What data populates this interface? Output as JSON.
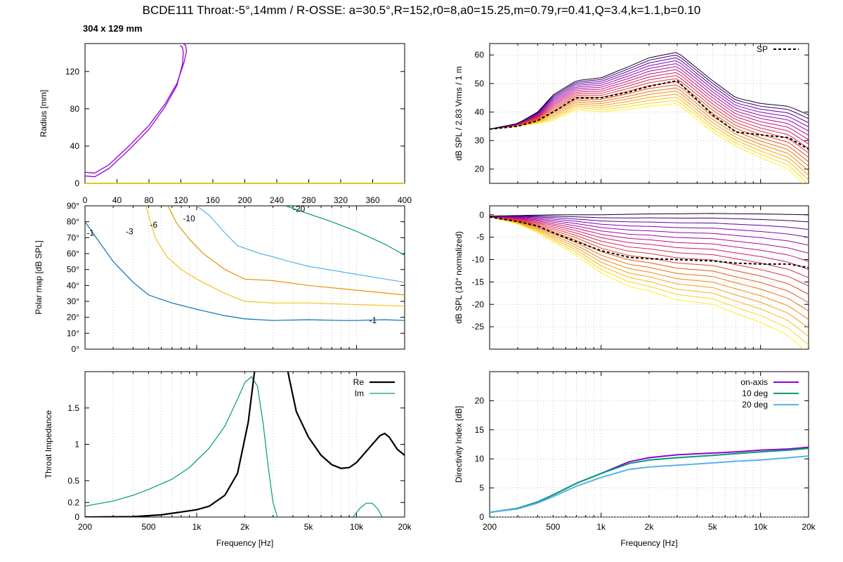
{
  "header": {
    "title": "BCDE111 Throat:-5°,14mm / R-OSSE: a=30.5°,R=152,r0=8,a0=15.25,m=0.79,r=0.41,Q=3.4,k=1.1,b=0.10",
    "subtitle": "304 x 129 mm"
  },
  "colors": {
    "profile": "#9400d3",
    "baseline": "#e6c619",
    "contour_m1": "#0072b2",
    "contour_m3": "#f0c419",
    "contour_m6": "#e69500",
    "contour_m10": "#56b4e9",
    "contour_m20": "#009e73",
    "re": "#000000",
    "im": "#009e73",
    "di_on_axis": "#9400d3",
    "di_10": "#009e73",
    "di_20": "#56b4e9"
  },
  "chart_data": [
    {
      "id": "profile",
      "type": "line",
      "ylabel": "Radius [mm]",
      "xticks": [
        "0",
        "40",
        "80",
        "120",
        "160",
        "200",
        "240",
        "280",
        "320",
        "360",
        "400"
      ],
      "yticks": [
        "0",
        "40",
        "80",
        "120"
      ],
      "xlim": [
        0,
        400
      ],
      "ylim": [
        0,
        150
      ],
      "series": [
        {
          "values_x": [
            0,
            12,
            30,
            55,
            80,
            100,
            115,
            124,
            127,
            126,
            123
          ],
          "values_y": [
            12,
            11,
            20,
            40,
            62,
            85,
            107,
            130,
            142,
            148,
            150
          ]
        },
        {
          "values_x": [
            0,
            12,
            30,
            55,
            80,
            100,
            115,
            122,
            123,
            122,
            119
          ],
          "values_y": [
            8,
            7,
            16,
            36,
            58,
            82,
            105,
            128,
            140,
            146,
            148
          ]
        }
      ]
    },
    {
      "id": "polar_map",
      "type": "line",
      "ylabel": "Polar map [dB SPL]",
      "yticks": [
        "0°",
        "10°",
        "20°",
        "30°",
        "40°",
        "50°",
        "60°",
        "70°",
        "80°",
        "90°"
      ],
      "xscale": "log",
      "xlim": [
        200,
        20000
      ],
      "ylim": [
        0,
        90
      ],
      "contours": [
        {
          "label": "-1",
          "x": [
            200,
            300,
            400,
            500,
            700,
            1000,
            1500,
            2000,
            3000,
            5000,
            8000,
            10000,
            15000,
            20000
          ],
          "y": [
            80,
            55,
            42,
            34,
            29,
            25,
            21,
            19,
            18,
            18.5,
            18,
            18,
            18.5,
            18
          ]
        },
        {
          "label": "-3",
          "x": [
            480,
            550,
            650,
            800,
            1000,
            1500,
            2000,
            3000,
            5000,
            10000,
            20000
          ],
          "y": [
            90,
            70,
            58,
            50,
            44,
            35,
            30,
            29,
            29,
            28,
            27
          ]
        },
        {
          "label": "-6",
          "x": [
            660,
            750,
            900,
            1100,
            1500,
            2000,
            3000,
            5000,
            10000,
            20000
          ],
          "y": [
            90,
            79,
            69,
            60,
            50,
            44,
            43,
            40,
            37,
            34
          ]
        },
        {
          "label": "-10",
          "x": [
            1000,
            1200,
            1500,
            1800,
            2500,
            3000,
            3500,
            5000,
            10000,
            20000
          ],
          "y": [
            90,
            84,
            73,
            65,
            60,
            58,
            56,
            52,
            47,
            42
          ]
        },
        {
          "label": "-20",
          "x": [
            3600,
            5000,
            7000,
            10000,
            15000,
            20000
          ],
          "y": [
            90,
            85,
            80,
            74,
            66,
            59
          ]
        }
      ],
      "contour_labels": [
        {
          "text": "-1",
          "x": 205,
          "y": 73
        },
        {
          "text": "-3",
          "x": 360,
          "y": 74
        },
        {
          "text": "-6",
          "x": 510,
          "y": 78
        },
        {
          "text": "-10",
          "x": 820,
          "y": 82
        },
        {
          "text": "-20",
          "x": 4000,
          "y": 88
        },
        {
          "text": "-1",
          "x": 12000,
          "y": 18
        }
      ]
    },
    {
      "id": "impedance",
      "type": "line",
      "xlabel": "Frequency [Hz]",
      "ylabel": "Throat Impedance",
      "xscale": "log",
      "xlim": [
        200,
        20000
      ],
      "ylim": [
        0,
        2
      ],
      "xticks": [
        "200",
        "500",
        "1k",
        "2k",
        "5k",
        "10k",
        "20k"
      ],
      "xtick_vals": [
        200,
        500,
        1000,
        2000,
        5000,
        10000,
        20000
      ],
      "yticks": [
        "0",
        "0.2",
        "0.5",
        "1",
        "1.5"
      ],
      "ytick_vals": [
        0,
        0.2,
        0.5,
        1,
        1.5
      ],
      "legend": "top-right",
      "series": [
        {
          "name": "Re",
          "x": [
            200,
            400,
            600,
            800,
            1000,
            1200,
            1500,
            1800,
            2100,
            2300,
            2400,
            3500,
            3800,
            4200,
            5000,
            6000,
            7000,
            8000,
            9000,
            10000,
            12000,
            14000,
            15000,
            16000,
            18000,
            20000
          ],
          "y": [
            0,
            0.005,
            0.03,
            0.07,
            0.1,
            0.15,
            0.3,
            0.6,
            1.3,
            2.0,
            2.3,
            2.3,
            1.9,
            1.45,
            1.1,
            0.85,
            0.72,
            0.67,
            0.68,
            0.75,
            0.95,
            1.12,
            1.15,
            1.1,
            0.93,
            0.85
          ]
        },
        {
          "name": "Im",
          "x": [
            200,
            300,
            400,
            500,
            700,
            900,
            1200,
            1500,
            1800,
            2000,
            2200,
            2400,
            2600,
            2800,
            3000,
            3200
          ],
          "y": [
            0.15,
            0.22,
            0.3,
            0.38,
            0.52,
            0.68,
            0.95,
            1.25,
            1.62,
            1.85,
            1.93,
            1.8,
            1.3,
            0.7,
            0.2,
            0
          ]
        },
        {
          "name": "",
          "x": [
            9500,
            10500,
            11500,
            12500,
            13500,
            14500
          ],
          "y": [
            0,
            0.12,
            0.19,
            0.19,
            0.12,
            0
          ]
        }
      ]
    },
    {
      "id": "spl",
      "type": "line",
      "ylabel": "dB SPL / 2.83 Vrms / 1 m",
      "xscale": "log",
      "xlim": [
        200,
        20000
      ],
      "ylim": [
        15,
        64
      ],
      "yticks": [
        "20",
        "30",
        "40",
        "50",
        "60"
      ],
      "ytick_vals": [
        20,
        30,
        40,
        50,
        60
      ],
      "legend": "top-right",
      "series": [
        {
          "name": "SP",
          "x": [
            200,
            300,
            400,
            500,
            700,
            1000,
            1500,
            2000,
            3000,
            5000,
            7000,
            10000,
            15000,
            20000
          ],
          "y": [
            34,
            35,
            37,
            40,
            45,
            45,
            47,
            49,
            51,
            39,
            33,
            32,
            31,
            27
          ]
        }
      ],
      "family": {
        "count": 18,
        "top": {
          "x": [
            200,
            300,
            400,
            500,
            700,
            1000,
            1500,
            2000,
            3000,
            5000,
            7000,
            10000,
            15000,
            20000
          ],
          "y": [
            34,
            36,
            40,
            46,
            51,
            52,
            56,
            59,
            61,
            51,
            45,
            43,
            42,
            39
          ]
        },
        "bottom": {
          "x": [
            200,
            300,
            400,
            500,
            700,
            1000,
            1500,
            2000,
            3000,
            5000,
            7000,
            10000,
            15000,
            20000
          ],
          "y": [
            34,
            35,
            36,
            37,
            41,
            40,
            41,
            42,
            43,
            33,
            28,
            24,
            20,
            13
          ]
        }
      }
    },
    {
      "id": "normalized",
      "type": "line",
      "ylabel": "dB SPL (10° normalized)",
      "xscale": "log",
      "xlim": [
        200,
        20000
      ],
      "ylim": [
        -30,
        2
      ],
      "yticks": [
        "0",
        "-5",
        "-10",
        "-15",
        "-20",
        "-25"
      ],
      "ytick_vals": [
        0,
        -5,
        -10,
        -15,
        -20,
        -25
      ],
      "series": [
        {
          "name": "",
          "x": [
            200,
            300,
            400,
            500,
            700,
            1000,
            1500,
            2000,
            3000,
            5000,
            7000,
            10000,
            15000,
            20000
          ],
          "y": [
            -0.5,
            -1.5,
            -2.5,
            -4,
            -6,
            -8,
            -9.5,
            -9.8,
            -10,
            -10.3,
            -10.8,
            -11,
            -11,
            -11.8
          ]
        }
      ],
      "family": {
        "count": 18,
        "top": {
          "x": [
            200,
            500,
            1000,
            2000,
            5000,
            10000,
            20000
          ],
          "y": [
            -0.3,
            0,
            0,
            0.2,
            0.3,
            0.2,
            0
          ]
        },
        "bottom": {
          "x": [
            200,
            300,
            400,
            500,
            700,
            1000,
            1500,
            2000,
            3000,
            5000,
            7000,
            10000,
            15000,
            20000
          ],
          "y": [
            -0.5,
            -2,
            -4,
            -6,
            -9,
            -13,
            -16,
            -17,
            -19,
            -20,
            -22,
            -24,
            -27,
            -31
          ]
        }
      }
    },
    {
      "id": "directivity",
      "type": "line",
      "xlabel": "Frequency [Hz]",
      "ylabel": "Directivity Index [dB]",
      "xscale": "log",
      "xlim": [
        200,
        20000
      ],
      "ylim": [
        0,
        25
      ],
      "xticks": [
        "200",
        "500",
        "1k",
        "2k",
        "5k",
        "10k",
        "20k"
      ],
      "xtick_vals": [
        200,
        500,
        1000,
        2000,
        5000,
        10000,
        20000
      ],
      "yticks": [
        "0",
        "5",
        "10",
        "15",
        "20"
      ],
      "ytick_vals": [
        0,
        5,
        10,
        15,
        20
      ],
      "legend": "top-right",
      "series": [
        {
          "name": "on-axis",
          "x": [
            200,
            300,
            400,
            500,
            700,
            1000,
            1500,
            2000,
            3000,
            5000,
            7000,
            10000,
            15000,
            20000
          ],
          "y": [
            0.8,
            1.5,
            2.6,
            3.8,
            5.8,
            7.5,
            9.5,
            10.2,
            10.7,
            11,
            11.2,
            11.5,
            11.7,
            12
          ]
        },
        {
          "name": "10 deg",
          "x": [
            200,
            300,
            400,
            500,
            700,
            1000,
            1500,
            2000,
            3000,
            5000,
            7000,
            10000,
            15000,
            20000
          ],
          "y": [
            0.8,
            1.5,
            2.6,
            3.8,
            5.8,
            7.5,
            9.2,
            9.8,
            10.2,
            10.6,
            10.9,
            11.2,
            11.5,
            11.8
          ]
        },
        {
          "name": "20 deg",
          "x": [
            200,
            300,
            400,
            500,
            700,
            1000,
            1500,
            2000,
            3000,
            5000,
            7000,
            10000,
            15000,
            20000
          ],
          "y": [
            0.8,
            1.4,
            2.4,
            3.5,
            5.3,
            6.8,
            8.2,
            8.6,
            8.9,
            9.3,
            9.6,
            9.8,
            10.2,
            10.5
          ]
        }
      ]
    }
  ]
}
